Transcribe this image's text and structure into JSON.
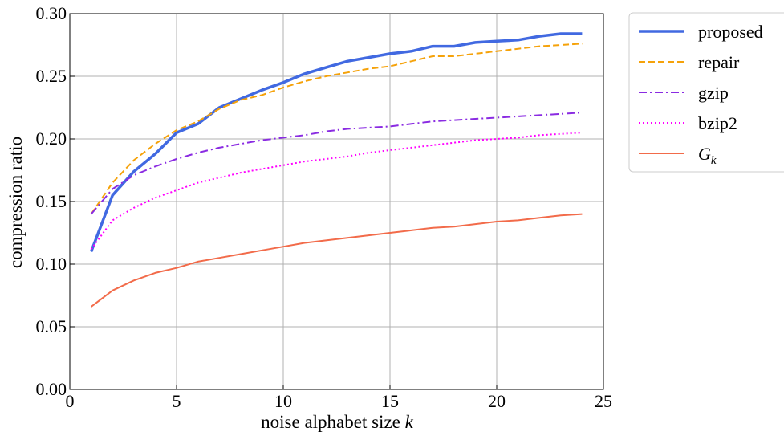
{
  "chart_data": {
    "type": "line",
    "xlabel": "noise alphabet size",
    "xlabel_var": "k",
    "ylabel": "compression ratio",
    "xlim": [
      0,
      25
    ],
    "ylim": [
      0,
      0.3
    ],
    "xticks": [
      0,
      5,
      10,
      15,
      20,
      25
    ],
    "xtick_labels": [
      "0",
      "5",
      "10",
      "15",
      "20",
      "25"
    ],
    "yticks": [
      0,
      0.05,
      0.1,
      0.15,
      0.2,
      0.25,
      0.3
    ],
    "ytick_labels": [
      "0.00",
      "0.05",
      "0.10",
      "0.15",
      "0.20",
      "0.25",
      "0.30"
    ],
    "grid": true,
    "legend_position": "outside-right",
    "x": [
      1,
      2,
      3,
      4,
      5,
      6,
      7,
      8,
      9,
      10,
      11,
      12,
      13,
      14,
      15,
      16,
      17,
      18,
      19,
      20,
      21,
      22,
      23,
      24
    ],
    "series": [
      {
        "name": "proposed",
        "color": "#4169e1",
        "style": "solid",
        "width": 3.5,
        "values": [
          0.11,
          0.155,
          0.174,
          0.188,
          0.205,
          0.212,
          0.225,
          0.232,
          0.239,
          0.245,
          0.252,
          0.257,
          0.262,
          0.265,
          0.268,
          0.27,
          0.274,
          0.274,
          0.277,
          0.278,
          0.279,
          0.282,
          0.284,
          0.284
        ]
      },
      {
        "name": "repair",
        "color": "#f5a20a",
        "style": "dashed",
        "width": 2,
        "values": [
          0.14,
          0.165,
          0.183,
          0.196,
          0.207,
          0.214,
          0.224,
          0.231,
          0.235,
          0.241,
          0.246,
          0.25,
          0.253,
          0.256,
          0.258,
          0.262,
          0.266,
          0.266,
          0.268,
          0.27,
          0.272,
          0.274,
          0.275,
          0.276
        ]
      },
      {
        "name": "gzip",
        "color": "#8a2be2",
        "style": "dashdot",
        "width": 2,
        "values": [
          0.14,
          0.16,
          0.171,
          0.178,
          0.184,
          0.189,
          0.193,
          0.196,
          0.199,
          0.201,
          0.203,
          0.206,
          0.208,
          0.209,
          0.21,
          0.212,
          0.214,
          0.215,
          0.216,
          0.217,
          0.218,
          0.219,
          0.22,
          0.221
        ]
      },
      {
        "name": "bzip2",
        "color": "#ff00ff",
        "style": "dotted",
        "width": 2,
        "values": [
          0.112,
          0.135,
          0.145,
          0.153,
          0.159,
          0.165,
          0.169,
          0.173,
          0.176,
          0.179,
          0.182,
          0.184,
          0.186,
          0.189,
          0.191,
          0.193,
          0.195,
          0.197,
          0.199,
          0.2,
          0.201,
          0.203,
          0.204,
          0.205
        ]
      },
      {
        "name": "G",
        "name_subscript": "k",
        "color": "#f26b4a",
        "style": "solid",
        "width": 2,
        "values": [
          0.066,
          0.079,
          0.087,
          0.093,
          0.097,
          0.102,
          0.105,
          0.108,
          0.111,
          0.114,
          0.117,
          0.119,
          0.121,
          0.123,
          0.125,
          0.127,
          0.129,
          0.13,
          0.132,
          0.134,
          0.135,
          0.137,
          0.139,
          0.14
        ]
      }
    ]
  }
}
